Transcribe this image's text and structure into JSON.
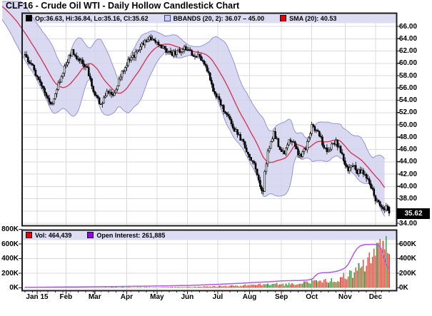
{
  "title": "CLF16 - Crude Oil WTI - Daily Hollow Candlestick Chart",
  "main_legend": {
    "ohlc_label": "Op:36.63, Hi:36.84, Lo:35.16, Cl:35.62",
    "bbands_label": "BBANDS (20, 2): 36.07 – 45.00",
    "sma_label": "SMA (20): 40.53"
  },
  "volume_legend": {
    "vol_label": "Vol: 464,439",
    "oi_label": "Open Interest: 261,885"
  },
  "last_price_badge": "35.62",
  "axes": {
    "price_tick_labels": [
      "66.00",
      "64.00",
      "62.00",
      "60.00",
      "58.00",
      "56.00",
      "54.00",
      "52.00",
      "50.00",
      "48.00",
      "46.00",
      "44.00",
      "42.00",
      "40.00",
      "38.00",
      "34.00"
    ],
    "price_tick_values": [
      66,
      64,
      62,
      60,
      58,
      56,
      54,
      52,
      50,
      48,
      46,
      44,
      42,
      40,
      38,
      34
    ],
    "volume_tick_labels_left": [
      "800K",
      "600K",
      "400K",
      "200K",
      "0K"
    ],
    "volume_tick_values_left": [
      800000,
      600000,
      400000,
      200000,
      0
    ],
    "volume_tick_labels_right": [
      "600K",
      "400K",
      "200K",
      "0K"
    ],
    "volume_tick_values_right": [
      600000,
      400000,
      200000,
      0
    ],
    "month_labels": [
      "Jan 15",
      "Feb",
      "Mar",
      "Apr",
      "May",
      "Jun",
      "Jul",
      "Aug",
      "Sep",
      "Oct",
      "Nov",
      "Dec"
    ],
    "month_days": [
      8,
      27,
      46,
      67,
      87,
      107,
      127,
      148,
      169,
      189,
      211,
      231
    ]
  },
  "colors": {
    "grid": "#d9d9e3",
    "frame": "#1d1d1d",
    "legend_bg": "#dcdcf2",
    "band_fill": "#cfcfee",
    "band_edge": "#9595d2",
    "sma_line": "#d23b56",
    "candle": "#000000",
    "candle_up_fill": "#ffffff",
    "volume_up": "#3d9e46",
    "volume_down": "#ee5242",
    "open_interest": "#b05ce0",
    "badge_bg": "#000000",
    "badge_text": "#ffffff",
    "swatch_ohlc": "#000000",
    "swatch_bbands_fill": "#ccccf0",
    "swatch_bbands_border": "#3a3ac0",
    "swatch_sma": "#e60000",
    "swatch_vol": "#e60000",
    "swatch_oi": "#9b00e0"
  },
  "chart_data": {
    "type": "candlestick",
    "title": "CLF16 - Crude Oil WTI - Daily Hollow Candlestick Chart",
    "legend_position": "top-inside",
    "grid": true,
    "price_axis_range": [
      34,
      66
    ],
    "volume_axis_range": [
      0,
      800000
    ],
    "x_axis_span": "mid-Dec 2014 to mid-Dec 2015, daily bars",
    "current_ohlc": {
      "open": 36.63,
      "high": 36.84,
      "low": 35.16,
      "close": 35.62
    },
    "bbands": {
      "period": 20,
      "stddev": 2,
      "lower": 36.07,
      "upper": 45.0
    },
    "sma": {
      "period": 20,
      "value": 40.53
    },
    "volume": 464439,
    "open_interest": 261885,
    "last_price": 35.62,
    "days_visible": 241,
    "close_anchors": [
      [
        -34,
        71.0
      ],
      [
        -28,
        69.8
      ],
      [
        -22,
        68.8
      ],
      [
        -16,
        67.5
      ],
      [
        -10,
        65.2
      ],
      [
        -5,
        63.2
      ],
      [
        0,
        61.3
      ],
      [
        5,
        59.6
      ],
      [
        10,
        56.5
      ],
      [
        15,
        54.2
      ],
      [
        18,
        53.2
      ],
      [
        22,
        56.5
      ],
      [
        27,
        60.0
      ],
      [
        31,
        62.0
      ],
      [
        36,
        60.5
      ],
      [
        41,
        59.0
      ],
      [
        45,
        55.5
      ],
      [
        50,
        53.3
      ],
      [
        54,
        55.5
      ],
      [
        58,
        54.5
      ],
      [
        64,
        58.5
      ],
      [
        68,
        60.5
      ],
      [
        73,
        61.5
      ],
      [
        78,
        63.3
      ],
      [
        82,
        64.0
      ],
      [
        87,
        63.3
      ],
      [
        92,
        62.3
      ],
      [
        96,
        61.5
      ],
      [
        101,
        62.0
      ],
      [
        106,
        62.5
      ],
      [
        110,
        61.5
      ],
      [
        115,
        61.0
      ],
      [
        120,
        59.0
      ],
      [
        124,
        55.8
      ],
      [
        129,
        53.5
      ],
      [
        133,
        51.5
      ],
      [
        138,
        49.3
      ],
      [
        143,
        47.5
      ],
      [
        147,
        45.3
      ],
      [
        152,
        43.0
      ],
      [
        155,
        40.2
      ],
      [
        157,
        39.2
      ],
      [
        158,
        42.5
      ],
      [
        160,
        45.5
      ],
      [
        162,
        47.2
      ],
      [
        164,
        48.8
      ],
      [
        166,
        47.5
      ],
      [
        168,
        46.0
      ],
      [
        171,
        45.3
      ],
      [
        173,
        46.8
      ],
      [
        175,
        47.6
      ],
      [
        178,
        46.5
      ],
      [
        180,
        45.4
      ],
      [
        182,
        44.8
      ],
      [
        185,
        46.3
      ],
      [
        187,
        48.0
      ],
      [
        189,
        49.8
      ],
      [
        192,
        48.9
      ],
      [
        194,
        48.3
      ],
      [
        196,
        47.0
      ],
      [
        199,
        46.0
      ],
      [
        202,
        46.6
      ],
      [
        205,
        47.2
      ],
      [
        208,
        45.8
      ],
      [
        210,
        44.0
      ],
      [
        213,
        42.6
      ],
      [
        216,
        43.4
      ],
      [
        219,
        42.3
      ],
      [
        222,
        42.6
      ],
      [
        225,
        41.5
      ],
      [
        227,
        40.6
      ],
      [
        229,
        39.4
      ],
      [
        231,
        37.9
      ],
      [
        234,
        37.0
      ],
      [
        236,
        36.2
      ],
      [
        238,
        36.6
      ],
      [
        240,
        35.62
      ]
    ],
    "volume_anchors": [
      [
        0,
        2500
      ],
      [
        30,
        4000
      ],
      [
        60,
        6000
      ],
      [
        90,
        9000
      ],
      [
        110,
        13000
      ],
      [
        125,
        20000
      ],
      [
        140,
        28000
      ],
      [
        150,
        40000
      ],
      [
        157,
        60000
      ],
      [
        160,
        50000
      ],
      [
        166,
        52000
      ],
      [
        172,
        48000
      ],
      [
        180,
        62000
      ],
      [
        187,
        75000
      ],
      [
        190,
        95000
      ],
      [
        196,
        85000
      ],
      [
        202,
        100000
      ],
      [
        208,
        130000
      ],
      [
        211,
        160000
      ],
      [
        214,
        190000
      ],
      [
        217,
        230000
      ],
      [
        220,
        285000
      ],
      [
        223,
        345000
      ],
      [
        226,
        400000
      ],
      [
        229,
        455000
      ],
      [
        231,
        520000
      ],
      [
        233,
        650000
      ],
      [
        234,
        750000
      ],
      [
        235,
        560000
      ],
      [
        236,
        480000
      ],
      [
        237,
        620000
      ],
      [
        238,
        560000
      ],
      [
        239,
        500000
      ],
      [
        240,
        464439
      ]
    ],
    "open_interest_anchors": [
      [
        0,
        7000
      ],
      [
        30,
        12000
      ],
      [
        60,
        18000
      ],
      [
        90,
        26000
      ],
      [
        110,
        34000
      ],
      [
        125,
        46000
      ],
      [
        140,
        60000
      ],
      [
        150,
        72000
      ],
      [
        160,
        82000
      ],
      [
        170,
        96000
      ],
      [
        180,
        100000
      ],
      [
        185,
        104000
      ],
      [
        188,
        112000
      ],
      [
        190,
        130000
      ],
      [
        191,
        160000
      ],
      [
        193,
        192000
      ],
      [
        195,
        205000
      ],
      [
        200,
        210000
      ],
      [
        204,
        220000
      ],
      [
        207,
        235000
      ],
      [
        209,
        252000
      ],
      [
        211,
        275000
      ],
      [
        213,
        320000
      ],
      [
        215,
        400000
      ],
      [
        217,
        480000
      ],
      [
        219,
        540000
      ],
      [
        221,
        575000
      ],
      [
        224,
        590000
      ],
      [
        227,
        593000
      ],
      [
        230,
        595000
      ],
      [
        232,
        588000
      ],
      [
        234,
        560000
      ],
      [
        235,
        520000
      ],
      [
        236,
        465000
      ],
      [
        237,
        400000
      ],
      [
        238,
        335000
      ],
      [
        239,
        290000
      ],
      [
        240,
        261885
      ]
    ]
  }
}
